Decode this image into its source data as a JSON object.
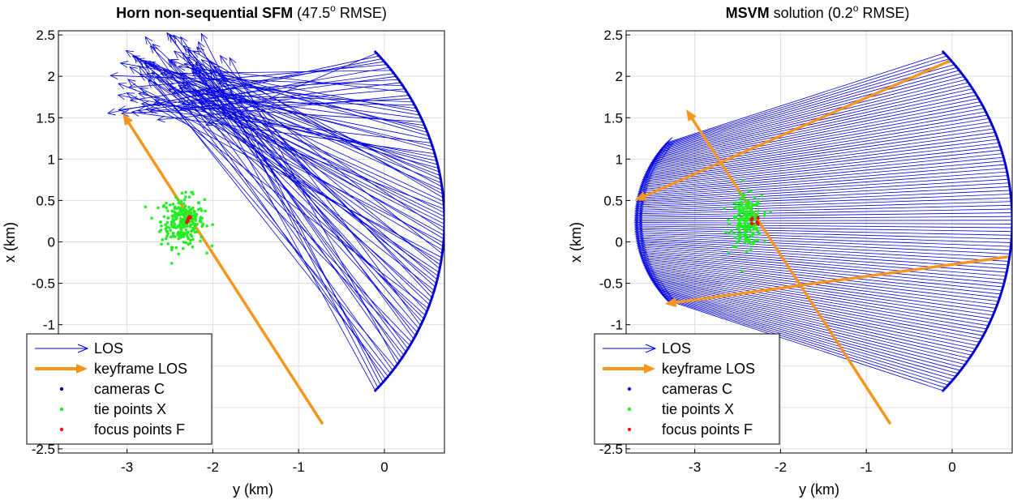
{
  "chart_data": [
    {
      "type": "scatter",
      "title_bold": "Horn non-sequential SFM",
      "title_rest": " (47.5",
      "title_sup": "o",
      "title_tail": " RMSE)",
      "xlabel": "y  (km)",
      "ylabel": "x  (km)",
      "xlim": [
        -3.8,
        0.7
      ],
      "ylim": [
        -2.55,
        2.55
      ],
      "xticks": [
        -3,
        -2,
        -1,
        0
      ],
      "yticks": [
        -2.5,
        -2,
        -1.5,
        -1,
        -0.5,
        0,
        0.5,
        1,
        1.5,
        2,
        2.5
      ],
      "xticklabels": [
        "-3",
        "-2",
        "-1",
        "0"
      ],
      "yticklabels": [
        "-2.5",
        "-2",
        "-1.5",
        "-1",
        "-0.5",
        "0",
        "0.5",
        "1",
        "1.5",
        "2",
        "2.5"
      ],
      "grid": true,
      "legend_position": "bottom-left",
      "cameras": {
        "shape": "arc",
        "center": [
          -2.3,
          0.25
        ],
        "radius": 3.0,
        "angle_from_deg": -43,
        "angle_to_deg": 43,
        "count": 200
      },
      "los_tips": {
        "shape": "scattered",
        "near": [
          -2.6,
          2.3
        ],
        "spread": [
          1.3,
          0.7
        ]
      },
      "tie_points": {
        "center": [
          -2.35,
          0.25
        ],
        "spread": [
          0.25,
          0.3
        ],
        "count": 260
      },
      "focus_points": {
        "center": [
          -2.3,
          0.27
        ]
      },
      "keyframe_los": [
        {
          "from": [
            -0.72,
            -2.2
          ],
          "to": [
            -3.05,
            1.55
          ]
        }
      ]
    },
    {
      "type": "scatter",
      "title_bold": "MSVM",
      "title_rest": " solution (0.2",
      "title_sup": "o",
      "title_tail": " RMSE)",
      "xlabel": "y  (km)",
      "ylabel": "x  (km)",
      "xlim": [
        -3.8,
        0.7
      ],
      "ylim": [
        -2.55,
        2.55
      ],
      "xticks": [
        -3,
        -2,
        -1,
        0
      ],
      "yticks": [
        -2.5,
        -2,
        -1.5,
        -1,
        -0.5,
        0,
        0.5,
        1,
        1.5,
        2,
        2.5
      ],
      "xticklabels": [
        "-3",
        "-2",
        "-1",
        "0"
      ],
      "yticklabels": [
        "-2.5",
        "-2",
        "-1.5",
        "-1",
        "-0.5",
        "0",
        "0.5",
        "1",
        "1.5",
        "2",
        "2.5"
      ],
      "grid": true,
      "legend_position": "bottom-left",
      "cameras": {
        "shape": "arc",
        "center": [
          -2.3,
          0.25
        ],
        "radius": 3.0,
        "angle_from_deg": -43,
        "angle_to_deg": 43,
        "count": 200
      },
      "los_tips": {
        "shape": "arc",
        "center": [
          -2.3,
          0.25
        ],
        "radius": 1.4,
        "angle_from_deg": 137,
        "angle_to_deg": 223
      },
      "tie_points": {
        "center": [
          -2.4,
          0.25
        ],
        "spread": [
          0.18,
          0.3
        ],
        "count": 220
      },
      "focus_points": {
        "center": [
          -2.3,
          0.25
        ]
      },
      "keyframe_los": [
        {
          "from": [
            -0.72,
            -2.2
          ],
          "to": [
            -3.1,
            1.6
          ]
        },
        {
          "from": [
            0.0,
            2.2
          ],
          "to": [
            -3.7,
            0.5
          ]
        },
        {
          "from": [
            0.65,
            -0.18
          ],
          "to": [
            -3.35,
            -0.75
          ]
        }
      ]
    }
  ],
  "legend": {
    "items": [
      "LOS",
      "keyframe LOS",
      "cameras C",
      "tie points X",
      "focus points F"
    ]
  },
  "colors": {
    "los": "#0000e6",
    "keyframe": "#f5961e",
    "cameras": "#0000cc",
    "tie_points": "#22ee22",
    "focus_points": "#ee1111",
    "grid": "#dddddd"
  }
}
